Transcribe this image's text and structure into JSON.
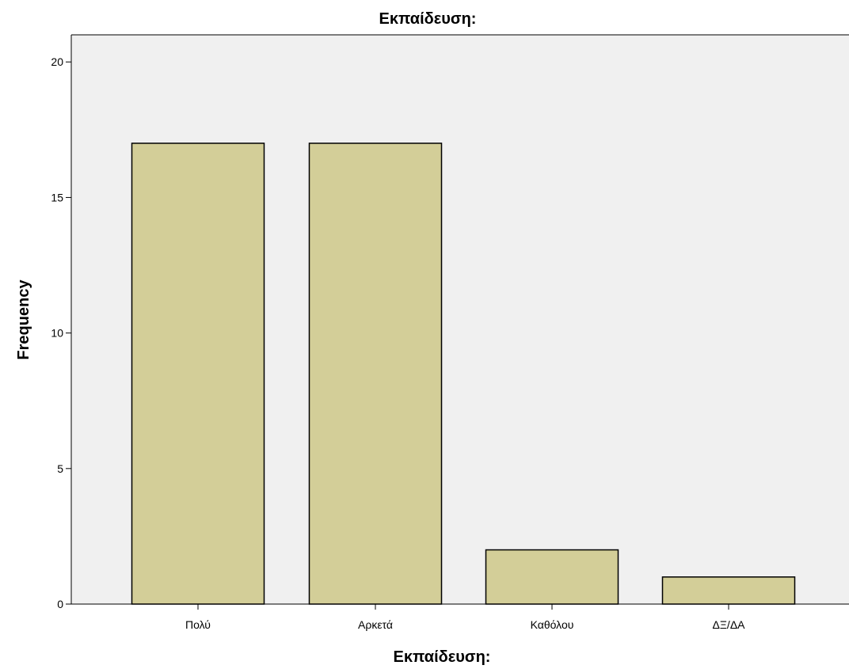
{
  "chart_data": {
    "type": "bar",
    "title": "Εκπαίδευση:",
    "xlabel": "Εκπαίδευση:",
    "ylabel": "Frequency",
    "categories": [
      "Πολύ",
      "Αρκετά",
      "Καθόλου",
      "ΔΞ/ΔΑ"
    ],
    "values": [
      17,
      17,
      2,
      1
    ],
    "ylim": [
      0,
      21
    ],
    "yticks": [
      "0",
      "5",
      "10",
      "15",
      "20"
    ],
    "grid": false,
    "legend": "none",
    "colors": {
      "bar_fill": "#d3ce98",
      "bar_stroke": "#000000",
      "plot_background": "#f0f0f0"
    }
  }
}
